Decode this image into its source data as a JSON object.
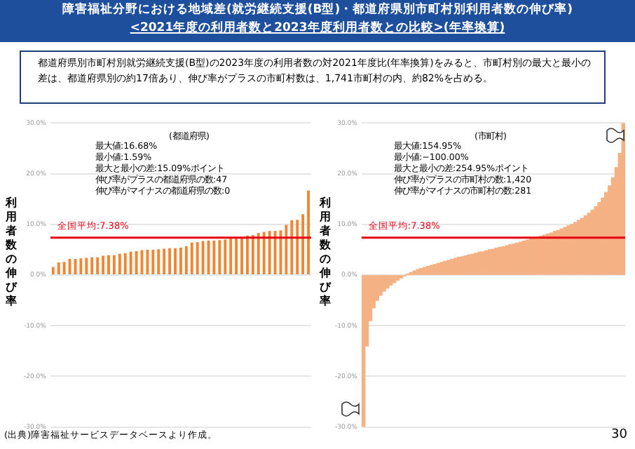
{
  "chart_data": [
    {
      "type": "other",
      "title": "障害福祉分野における地域差(就労継続支援(B型)・都道府県別市町村別利用者数の伸び率)",
      "subtitle": "<2021年度の利用者数と2023年度利用者数との比較>(年率換算)",
      "annotations": [
        "都道府県別市町村別就労継続支援(B型)の2023年度の利用者数の対2021年度比(年率換算)をみると、市町村別の最大と最小の差は、都道府県別の約17倍あり、伸び率がプラスの市町村数は、1,741市町村の内、約82%を占める。"
      ]
    },
    {
      "type": "bar",
      "title": "(都道府県)",
      "ylabel": "利用者数の伸び率",
      "color": "#ef8634",
      "grid": "y",
      "categories": [
        null,
        null,
        null,
        null,
        null,
        null,
        null,
        null,
        null,
        null,
        null,
        null,
        null,
        null,
        null,
        null,
        null,
        null,
        null,
        null,
        null,
        null,
        null,
        null,
        null,
        null,
        null,
        null,
        null,
        null,
        null,
        null,
        null,
        null,
        null,
        null,
        null,
        null,
        null,
        null,
        null,
        null,
        null,
        null,
        null,
        null,
        null
      ],
      "values": [
        1.59,
        2.5,
        2.6,
        3.2,
        3.2,
        3.3,
        3.4,
        3.5,
        3.5,
        3.8,
        3.9,
        3.9,
        4.2,
        4.3,
        4.6,
        4.7,
        4.9,
        5.0,
        5.0,
        5.1,
        5.2,
        5.3,
        5.3,
        5.4,
        5.7,
        6.4,
        6.5,
        6.7,
        6.8,
        6.8,
        6.9,
        7.0,
        7.3,
        7.4,
        7.5,
        7.8,
        7.9,
        8.3,
        8.5,
        8.7,
        8.7,
        8.8,
        9.9,
        10.8,
        10.9,
        12.0,
        16.68
      ],
      "ylim": [
        -30,
        30
      ],
      "yticks": [
        {
          "value": -30,
          "label": "-30.0%"
        },
        {
          "value": -20,
          "label": "-20.0%"
        },
        {
          "value": -10,
          "label": "-10.0%"
        },
        {
          "value": 0,
          "label": "0.0%"
        },
        {
          "value": 10,
          "label": "10.0%"
        },
        {
          "value": 20,
          "label": "20.0%"
        },
        {
          "value": 30,
          "label": "30.0%"
        }
      ],
      "ref_lines": [
        {
          "axis": "y",
          "value": 7.38,
          "label": "全国平均:7.38%",
          "color": "#e60012"
        }
      ],
      "annotations": [
        "最大値:16.68%",
        "最小値:1.59%",
        "最大と最小の差:15.09%ポイント",
        "伸び率がプラスの都道府県の数:47",
        "伸び率がマイナスの都道府県の数:0",
        "(出典)障害福祉サービスデータベースより作成。"
      ]
    },
    {
      "type": "bar",
      "title": "(市町村)",
      "ylabel": "利用者数の伸び率",
      "color": "#f4b183",
      "grid": "y",
      "categories": [
        null,
        null,
        null,
        null,
        null,
        null,
        null,
        null,
        null,
        null,
        null,
        null,
        null,
        null,
        null,
        null,
        null,
        null,
        null,
        null,
        null,
        null,
        null,
        null,
        null,
        null,
        null,
        null,
        null,
        null,
        null,
        null,
        null,
        null,
        null,
        null,
        null,
        null,
        null,
        null,
        null,
        null,
        null,
        null,
        null,
        null,
        null,
        null,
        null,
        null,
        null,
        null,
        null,
        null,
        null,
        null,
        null,
        null,
        null,
        null,
        null,
        null,
        null,
        null,
        null,
        null,
        null,
        null,
        null,
        null,
        null,
        null,
        null,
        null,
        null,
        null,
        null
      ],
      "values": [
        -30,
        -14,
        -9,
        -6.5,
        -5,
        -4,
        -3.2,
        -2.6,
        -2,
        -1.5,
        -1,
        -0.6,
        -0.2,
        0.2,
        0.5,
        0.8,
        1.1,
        1.3,
        1.5,
        1.7,
        1.9,
        2.1,
        2.3,
        2.5,
        2.7,
        2.9,
        3.1,
        3.3,
        3.5,
        3.6,
        3.8,
        4.0,
        4.1,
        4.3,
        4.5,
        4.6,
        4.8,
        5.0,
        5.1,
        5.3,
        5.5,
        5.6,
        5.8,
        6.0,
        6.1,
        6.3,
        6.5,
        6.7,
        6.9,
        7.1,
        7.3,
        7.5,
        7.7,
        7.9,
        8.1,
        8.3,
        8.6,
        8.8,
        9.1,
        9.4,
        9.7,
        10.0,
        10.4,
        10.8,
        11.2,
        11.7,
        12.2,
        12.8,
        13.5,
        14.3,
        15.2,
        16.3,
        17.6,
        19.2,
        21.2,
        24,
        30
      ],
      "ylim": [
        -30,
        30
      ],
      "yticks": [
        {
          "value": -30,
          "label": "-30.0%"
        },
        {
          "value": -20,
          "label": "-20.0%"
        },
        {
          "value": -10,
          "label": "-10.0%"
        },
        {
          "value": 0,
          "label": "0.0%"
        },
        {
          "value": 10,
          "label": "10.0%"
        },
        {
          "value": 20,
          "label": "20.0%"
        },
        {
          "value": 30,
          "label": "30.0%"
        }
      ],
      "ref_lines": [
        {
          "axis": "y",
          "value": 7.38,
          "label": "全国平均:7.38%",
          "color": "#e60012"
        }
      ],
      "annotations": [
        "最大値:154.95%",
        "最小値:−100.00%",
        "最大と最小の差:254.95%ポイント",
        "伸び率がプラスの市町村の数:1,420",
        "伸び率がマイナスの市町村の数:281",
        "30"
      ]
    }
  ]
}
